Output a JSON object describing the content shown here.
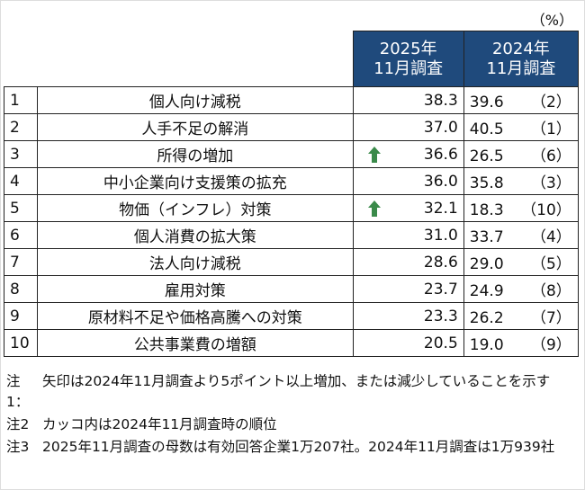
{
  "unit": "（%）",
  "headers": {
    "current": [
      "2025年",
      "11月調査"
    ],
    "previous": [
      "2024年",
      "11月調査"
    ]
  },
  "colors": {
    "header_bg": "#1f4a7c",
    "up_arrow": "#3a8a4a"
  },
  "rows": [
    {
      "rank": "1",
      "item": "個人向け減税",
      "current": "38.3",
      "arrow": "",
      "previous": "39.6",
      "prev_rank": "（2）"
    },
    {
      "rank": "2",
      "item": "人手不足の解消",
      "current": "37.0",
      "arrow": "",
      "previous": "40.5",
      "prev_rank": "（1）"
    },
    {
      "rank": "3",
      "item": "所得の増加",
      "current": "36.6",
      "arrow": "up",
      "previous": "26.5",
      "prev_rank": "（6）"
    },
    {
      "rank": "4",
      "item": "中小企業向け支援策の拡充",
      "current": "36.0",
      "arrow": "",
      "previous": "35.8",
      "prev_rank": "（3）"
    },
    {
      "rank": "5",
      "item": "物価（インフレ）対策",
      "current": "32.1",
      "arrow": "up",
      "previous": "18.3",
      "prev_rank": "（10）"
    },
    {
      "rank": "6",
      "item": "個人消費の拡大策",
      "current": "31.0",
      "arrow": "",
      "previous": "33.7",
      "prev_rank": "（4）"
    },
    {
      "rank": "7",
      "item": "法人向け減税",
      "current": "28.6",
      "arrow": "",
      "previous": "29.0",
      "prev_rank": "（5）"
    },
    {
      "rank": "8",
      "item": "雇用対策",
      "current": "23.7",
      "arrow": "",
      "previous": "24.9",
      "prev_rank": "（8）"
    },
    {
      "rank": "9",
      "item": "原材料不足や価格高騰への対策",
      "current": "23.3",
      "arrow": "",
      "previous": "26.2",
      "prev_rank": "（7）"
    },
    {
      "rank": "10",
      "item": "公共事業費の増額",
      "current": "20.5",
      "arrow": "",
      "previous": "19.0",
      "prev_rank": "（9）"
    }
  ],
  "notes": [
    {
      "label": "注1：",
      "text": "矢印は2024年11月調査より5ポイント以上増加、または減少していることを示す"
    },
    {
      "label": "注2",
      "text": "カッコ内は2024年11月調査時の順位"
    },
    {
      "label": "注3",
      "text": "2025年11月調査の母数は有効回答企業1万207社。2024年11月調査は1万939社"
    }
  ]
}
